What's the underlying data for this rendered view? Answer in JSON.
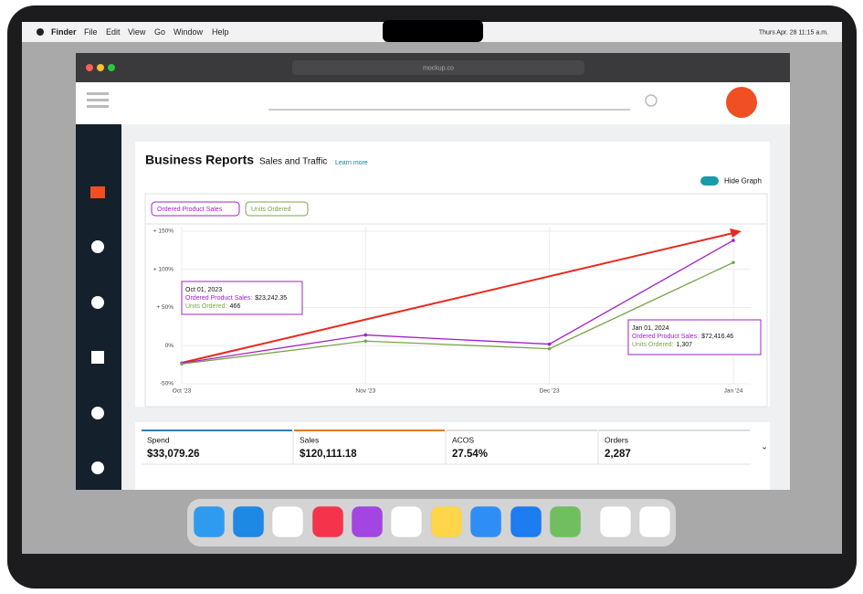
{
  "menu_bar": {
    "app": "Finder",
    "items": [
      "File",
      "Edit",
      "View",
      "Go",
      "Window",
      "Help"
    ],
    "clock": "Thurs Apr. 28 11:15 a.m."
  },
  "browser": {
    "url": "mockup.co"
  },
  "chart_data": {
    "type": "line",
    "title": "Business Reports",
    "subtitle": "Sales and Traffic",
    "link": "Learn more",
    "toggle": "Hide Graph",
    "categories": [
      "Oct '23",
      "Nov '23",
      "Dec '23",
      "Jan '24"
    ],
    "series": [
      {
        "name": "Ordered Product Sales",
        "color": "#a020c8",
        "values": [
          -23,
          14,
          2,
          138
        ]
      },
      {
        "name": "Units Ordered",
        "color": "#7aa54a",
        "values": [
          -24,
          6,
          -4,
          109
        ]
      }
    ],
    "ylim": [
      -50,
      156
    ],
    "yticks": [
      {
        "value": 150,
        "label": "+ 150%"
      },
      {
        "value": 100,
        "label": "+ 100%"
      },
      {
        "value": 50,
        "label": "+ 50%"
      },
      {
        "value": 0,
        "label": "0%"
      },
      {
        "value": -50,
        "label": "-50%"
      }
    ],
    "grid": true,
    "annotations": [
      {
        "date": "Oct 01, 2023",
        "sales_label": "Ordered Product Sales:",
        "sales": "$23,242.35",
        "units_label": "Units Ordered:",
        "units": "466"
      },
      {
        "date": "Jan 01, 2024",
        "sales_label": "Ordered Product Sales:",
        "sales": "$72,416.46",
        "units_label": "Units Ordered:",
        "units": "1,307"
      }
    ]
  },
  "metrics": [
    {
      "label": "Spend",
      "value": "$33,079.26"
    },
    {
      "label": "Sales",
      "value": "$120,111.18"
    },
    {
      "label": "ACOS",
      "value": "27.54%"
    },
    {
      "label": "Orders",
      "value": "2,287"
    }
  ]
}
